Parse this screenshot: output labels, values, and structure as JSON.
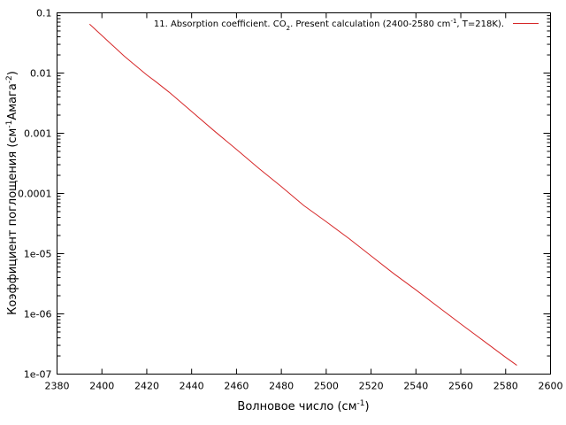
{
  "chart_data": {
    "type": "line",
    "title": "",
    "xlabel": {
      "text": "Волновое число (см",
      "sup": "-1",
      "suffix": ")"
    },
    "ylabel": {
      "text": "Коэффициент поглощения (см",
      "sup1": "-1",
      "mid": "Амага",
      "sup2": "-2",
      "suffix": ")"
    },
    "xlim": [
      2380,
      2600
    ],
    "ylim": [
      1e-07,
      0.1
    ],
    "yscale": "log",
    "x_ticks": [
      "2380",
      "2400",
      "2420",
      "2440",
      "2460",
      "2480",
      "2500",
      "2520",
      "2540",
      "2560",
      "2580",
      "2600"
    ],
    "y_ticks": [
      "1e-07",
      "1e-06",
      "1e-05",
      "0.0001",
      "0.001",
      "0.01",
      "0.1"
    ],
    "grid": false,
    "legend_position": "top-right",
    "series": [
      {
        "name": {
          "part1": "11. Absorption coefficient. CO",
          "sub": "2",
          "part2": ". Present calculation (2400-2580 cm",
          "sup": "-1",
          "part3": ", T=218K)."
        },
        "color": "#d62728",
        "x": [
          2394.5,
          2400,
          2410,
          2420,
          2424,
          2430,
          2440,
          2450,
          2460,
          2470,
          2480,
          2490,
          2500,
          2510,
          2520,
          2530,
          2540,
          2550,
          2560,
          2570,
          2580,
          2585
        ],
        "y": [
          0.065,
          0.042,
          0.019,
          0.0093,
          0.0072,
          0.0048,
          0.0023,
          0.0011,
          0.00054,
          0.00026,
          0.00013,
          6.3e-05,
          3.4e-05,
          1.8e-05,
          9.2e-06,
          4.7e-06,
          2.5e-06,
          1.3e-06,
          6.8e-07,
          3.6e-07,
          1.9e-07,
          1.4e-07
        ]
      }
    ]
  }
}
